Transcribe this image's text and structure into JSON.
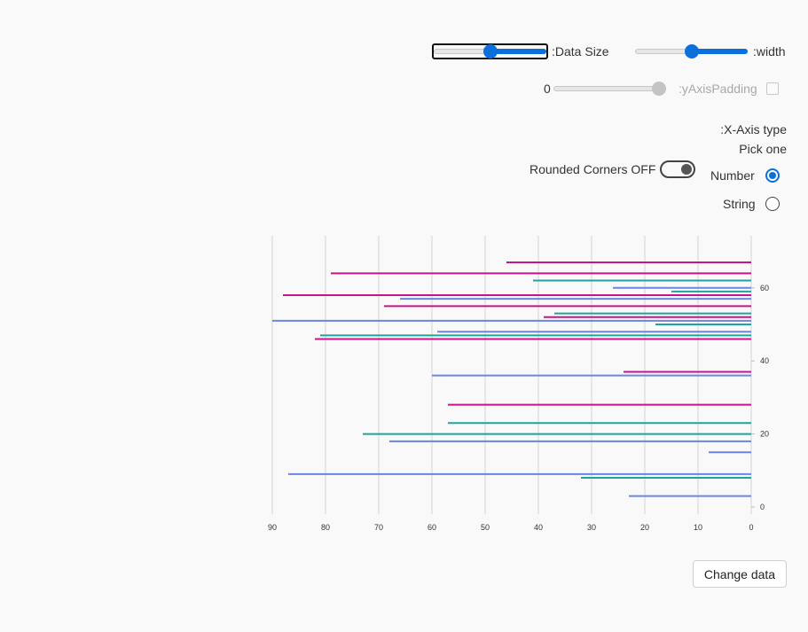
{
  "controls": {
    "data_size": {
      "label": ":Data Size",
      "value_fraction": 0.5
    },
    "width": {
      "label": ":width",
      "value_fraction": 0.5
    },
    "y_axis_padding": {
      "label": ":yAxisPadding",
      "min_label": "0",
      "value_fraction": 1.0,
      "disabled": true,
      "checked": false
    },
    "x_axis_type": {
      "title": ":X-Axis type",
      "subtitle": "Pick one",
      "options": [
        {
          "label": "Number",
          "checked": true
        },
        {
          "label": "String",
          "checked": false
        }
      ]
    },
    "rounded_corners": {
      "label": "Rounded Corners OFF",
      "on": false
    },
    "change_data_label": "Change data"
  },
  "colors": {
    "accent": "#0b6fdc",
    "series": [
      "#6a85e6",
      "#1fa39b",
      "#c8138a"
    ]
  },
  "chart_data": {
    "type": "bar",
    "orientation": "horizontal",
    "x_axis_direction": "reversed",
    "y_axis_position": "right",
    "xlim": [
      0,
      90
    ],
    "ylim": [
      0,
      70
    ],
    "x_ticks": [
      "90",
      "80",
      "70",
      "60",
      "50",
      "40",
      "30",
      "20",
      "10",
      "0"
    ],
    "y_ticks": [
      "0",
      "20",
      "40",
      "60"
    ],
    "grid": "vertical",
    "points": [
      {
        "y": 3,
        "x": 23,
        "c": 0
      },
      {
        "y": 8,
        "x": 32,
        "c": 1
      },
      {
        "y": 9,
        "x": 87,
        "c": 0
      },
      {
        "y": 15,
        "x": 8,
        "c": 0
      },
      {
        "y": 18,
        "x": 68,
        "c": 0
      },
      {
        "y": 20,
        "x": 73,
        "c": 1
      },
      {
        "y": 23,
        "x": 57,
        "c": 1
      },
      {
        "y": 28,
        "x": 57,
        "c": 2
      },
      {
        "y": 36,
        "x": 60,
        "c": 0
      },
      {
        "y": 37,
        "x": 24,
        "c": 2
      },
      {
        "y": 46,
        "x": 82,
        "c": 2
      },
      {
        "y": 47,
        "x": 81,
        "c": 1
      },
      {
        "y": 48,
        "x": 59,
        "c": 0
      },
      {
        "y": 50,
        "x": 18,
        "c": 1
      },
      {
        "y": 51,
        "x": 90,
        "c": 0
      },
      {
        "y": 52,
        "x": 39,
        "c": 2
      },
      {
        "y": 53,
        "x": 37,
        "c": 1
      },
      {
        "y": 55,
        "x": 69,
        "c": 2
      },
      {
        "y": 57,
        "x": 66,
        "c": 0
      },
      {
        "y": 58,
        "x": 88,
        "c": 2
      },
      {
        "y": 59,
        "x": 15,
        "c": 1
      },
      {
        "y": 60,
        "x": 26,
        "c": 0
      },
      {
        "y": 62,
        "x": 41,
        "c": 1
      },
      {
        "y": 64,
        "x": 79,
        "c": 2
      },
      {
        "y": 67,
        "x": 46,
        "c": 2
      }
    ]
  }
}
